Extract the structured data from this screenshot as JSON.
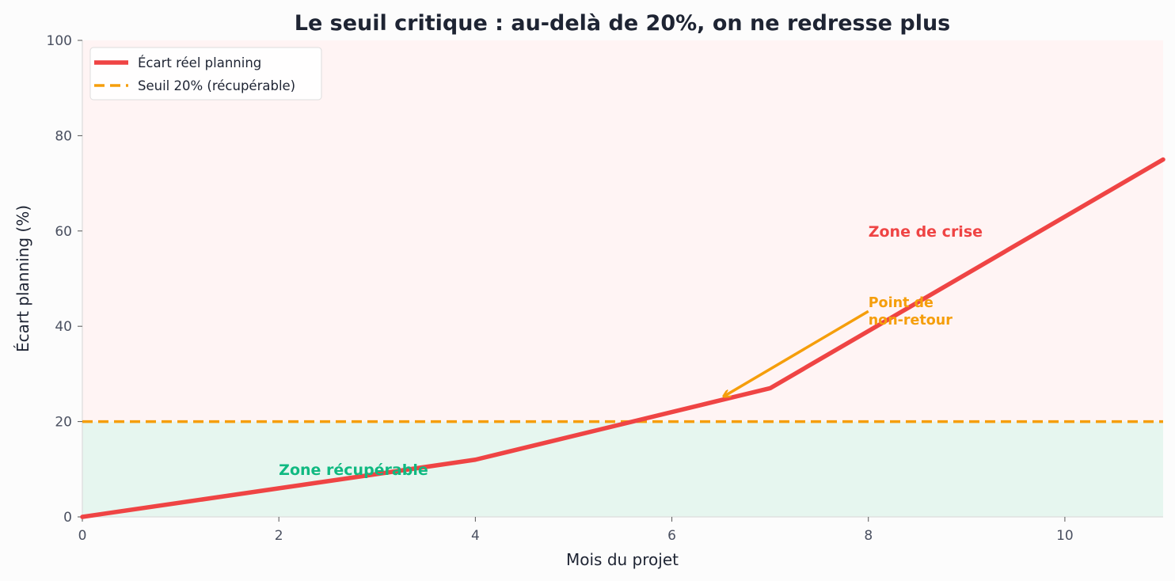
{
  "colors": {
    "actual": "#ef4444",
    "threshold": "#f59e0b",
    "crisis_zone_fill": "#fff4f4",
    "recoverable_zone_fill": "#e6f6ef",
    "recoverable_text": "#10b981",
    "crisis_text": "#ef4444",
    "annotation": "#f59e0b",
    "title_text": "#1e2433",
    "tick_text": "#4a5060",
    "spine": "#dcdcdc"
  },
  "chart_data": {
    "type": "line",
    "title": "Le seuil critique : au-delà de 20%, on ne redresse plus",
    "xlabel": "Mois du projet",
    "ylabel": "Écart planning (%)",
    "xlim": [
      0,
      11
    ],
    "ylim": [
      0,
      100
    ],
    "x_ticks": [
      "0",
      "2",
      "4",
      "6",
      "8",
      "10"
    ],
    "y_ticks": [
      "0",
      "20",
      "40",
      "60",
      "80",
      "100"
    ],
    "grid": false,
    "legend_position": "top-left",
    "series": [
      {
        "name": "Écart réel planning",
        "style": "solid",
        "x": [
          0,
          2,
          4,
          6,
          7,
          8,
          11
        ],
        "y": [
          0,
          6,
          12,
          22,
          27,
          39,
          75
        ]
      },
      {
        "name": "Seuil 20% (récupérable)",
        "style": "dashed",
        "x": [
          0,
          11
        ],
        "y": [
          20,
          20
        ]
      }
    ],
    "zones": [
      {
        "label": "Zone récupérable",
        "y_range": [
          0,
          20
        ],
        "label_x": 2,
        "label_y": 10
      },
      {
        "label": "Zone de crise",
        "y_range": [
          20,
          100
        ],
        "label_x": 8,
        "label_y": 60
      }
    ],
    "annotations": [
      {
        "lines": [
          "Point de",
          "non-retour"
        ],
        "text_x": 8,
        "text_y": 40,
        "arrow_to_x": 6.5,
        "arrow_to_y": 25
      }
    ]
  }
}
